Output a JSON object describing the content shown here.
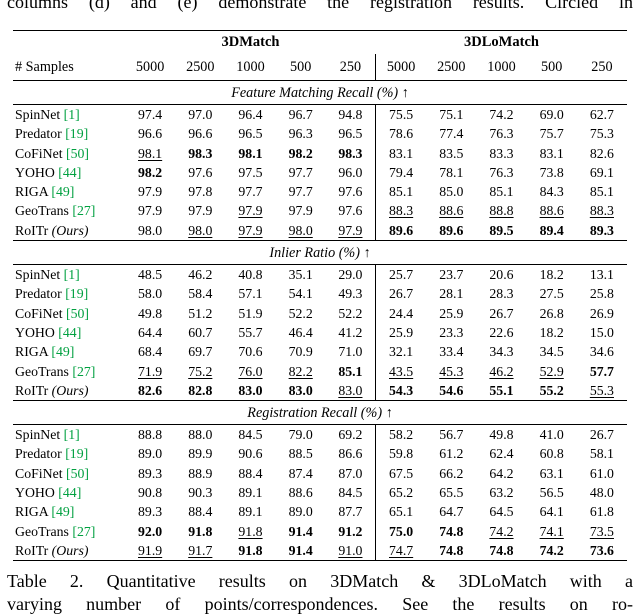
{
  "top_text": "columns (d) and (e) demonstrate the registration results. Circled in",
  "colors": {
    "citation_green": "#00a040"
  },
  "table": {
    "group_headers": [
      "3DMatch",
      "3DLoMatch"
    ],
    "samples_label": "# Samples",
    "sample_counts": [
      "5000",
      "2500",
      "1000",
      "500",
      "250",
      "5000",
      "2500",
      "1000",
      "500",
      "250"
    ],
    "sections": [
      {
        "title": "Feature Matching Recall (%) ↑",
        "rows": [
          {
            "method": "SpinNet",
            "cite": "[1]",
            "values": [
              "97.4",
              "97.0",
              "96.4",
              "96.7",
              "94.8",
              "75.5",
              "75.1",
              "74.2",
              "69.0",
              "62.7"
            ],
            "styles": [
              "n",
              "n",
              "n",
              "n",
              "n",
              "n",
              "n",
              "n",
              "n",
              "n"
            ]
          },
          {
            "method": "Predator",
            "cite": "[19]",
            "values": [
              "96.6",
              "96.6",
              "96.5",
              "96.3",
              "96.5",
              "78.6",
              "77.4",
              "76.3",
              "75.7",
              "75.3"
            ],
            "styles": [
              "n",
              "n",
              "n",
              "n",
              "n",
              "n",
              "n",
              "n",
              "n",
              "n"
            ]
          },
          {
            "method": "CoFiNet",
            "cite": "[50]",
            "values": [
              "98.1",
              "98.3",
              "98.1",
              "98.2",
              "98.3",
              "83.1",
              "83.5",
              "83.3",
              "83.1",
              "82.6"
            ],
            "styles": [
              "u",
              "b",
              "b",
              "b",
              "b",
              "n",
              "n",
              "n",
              "n",
              "n"
            ]
          },
          {
            "method": "YOHO",
            "cite": "[44]",
            "values": [
              "98.2",
              "97.6",
              "97.5",
              "97.7",
              "96.0",
              "79.4",
              "78.1",
              "76.3",
              "73.8",
              "69.1"
            ],
            "styles": [
              "b",
              "n",
              "n",
              "n",
              "n",
              "n",
              "n",
              "n",
              "n",
              "n"
            ]
          },
          {
            "method": "RIGA",
            "cite": "[49]",
            "values": [
              "97.9",
              "97.8",
              "97.7",
              "97.7",
              "97.6",
              "85.1",
              "85.0",
              "85.1",
              "84.3",
              "85.1"
            ],
            "styles": [
              "n",
              "n",
              "n",
              "n",
              "n",
              "n",
              "n",
              "n",
              "n",
              "n"
            ]
          },
          {
            "method": "GeoTrans",
            "cite": "[27]",
            "values": [
              "97.9",
              "97.9",
              "97.9",
              "97.9",
              "97.6",
              "88.3",
              "88.6",
              "88.8",
              "88.6",
              "88.3"
            ],
            "styles": [
              "n",
              "n",
              "u",
              "n",
              "n",
              "u",
              "u",
              "u",
              "u",
              "u"
            ]
          },
          {
            "method": "RoITr",
            "suffix": "(Ours)",
            "values": [
              "98.0",
              "98.0",
              "97.9",
              "98.0",
              "97.9",
              "89.6",
              "89.6",
              "89.5",
              "89.4",
              "89.3"
            ],
            "styles": [
              "n",
              "u",
              "u",
              "u",
              "u",
              "b",
              "b",
              "b",
              "b",
              "b"
            ]
          }
        ]
      },
      {
        "title": "Inlier Ratio (%) ↑",
        "rows": [
          {
            "method": "SpinNet",
            "cite": "[1]",
            "values": [
              "48.5",
              "46.2",
              "40.8",
              "35.1",
              "29.0",
              "25.7",
              "23.7",
              "20.6",
              "18.2",
              "13.1"
            ],
            "styles": [
              "n",
              "n",
              "n",
              "n",
              "n",
              "n",
              "n",
              "n",
              "n",
              "n"
            ]
          },
          {
            "method": "Predator",
            "cite": "[19]",
            "values": [
              "58.0",
              "58.4",
              "57.1",
              "54.1",
              "49.3",
              "26.7",
              "28.1",
              "28.3",
              "27.5",
              "25.8"
            ],
            "styles": [
              "n",
              "n",
              "n",
              "n",
              "n",
              "n",
              "n",
              "n",
              "n",
              "n"
            ]
          },
          {
            "method": "CoFiNet",
            "cite": "[50]",
            "values": [
              "49.8",
              "51.2",
              "51.9",
              "52.2",
              "52.2",
              "24.4",
              "25.9",
              "26.7",
              "26.8",
              "26.9"
            ],
            "styles": [
              "n",
              "n",
              "n",
              "n",
              "n",
              "n",
              "n",
              "n",
              "n",
              "n"
            ]
          },
          {
            "method": "YOHO",
            "cite": "[44]",
            "values": [
              "64.4",
              "60.7",
              "55.7",
              "46.4",
              "41.2",
              "25.9",
              "23.3",
              "22.6",
              "18.2",
              "15.0"
            ],
            "styles": [
              "n",
              "n",
              "n",
              "n",
              "n",
              "n",
              "n",
              "n",
              "n",
              "n"
            ]
          },
          {
            "method": "RIGA",
            "cite": "[49]",
            "values": [
              "68.4",
              "69.7",
              "70.6",
              "70.9",
              "71.0",
              "32.1",
              "33.4",
              "34.3",
              "34.5",
              "34.6"
            ],
            "styles": [
              "n",
              "n",
              "n",
              "n",
              "n",
              "n",
              "n",
              "n",
              "n",
              "n"
            ]
          },
          {
            "method": "GeoTrans",
            "cite": "[27]",
            "values": [
              "71.9",
              "75.2",
              "76.0",
              "82.2",
              "85.1",
              "43.5",
              "45.3",
              "46.2",
              "52.9",
              "57.7"
            ],
            "styles": [
              "u",
              "u",
              "u",
              "u",
              "b",
              "u",
              "u",
              "u",
              "u",
              "b"
            ]
          },
          {
            "method": "RoITr",
            "suffix": "(Ours)",
            "values": [
              "82.6",
              "82.8",
              "83.0",
              "83.0",
              "83.0",
              "54.3",
              "54.6",
              "55.1",
              "55.2",
              "55.3"
            ],
            "styles": [
              "b",
              "b",
              "b",
              "b",
              "u",
              "b",
              "b",
              "b",
              "b",
              "u"
            ]
          }
        ]
      },
      {
        "title": "Registration Recall (%) ↑",
        "rows": [
          {
            "method": "SpinNet",
            "cite": "[1]",
            "values": [
              "88.8",
              "88.0",
              "84.5",
              "79.0",
              "69.2",
              "58.2",
              "56.7",
              "49.8",
              "41.0",
              "26.7"
            ],
            "styles": [
              "n",
              "n",
              "n",
              "n",
              "n",
              "n",
              "n",
              "n",
              "n",
              "n"
            ]
          },
          {
            "method": "Predator",
            "cite": "[19]",
            "values": [
              "89.0",
              "89.9",
              "90.6",
              "88.5",
              "86.6",
              "59.8",
              "61.2",
              "62.4",
              "60.8",
              "58.1"
            ],
            "styles": [
              "n",
              "n",
              "n",
              "n",
              "n",
              "n",
              "n",
              "n",
              "n",
              "n"
            ]
          },
          {
            "method": "CoFiNet",
            "cite": "[50]",
            "values": [
              "89.3",
              "88.9",
              "88.4",
              "87.4",
              "87.0",
              "67.5",
              "66.2",
              "64.2",
              "63.1",
              "61.0"
            ],
            "styles": [
              "n",
              "n",
              "n",
              "n",
              "n",
              "n",
              "n",
              "n",
              "n",
              "n"
            ]
          },
          {
            "method": "YOHO",
            "cite": "[44]",
            "values": [
              "90.8",
              "90.3",
              "89.1",
              "88.6",
              "84.5",
              "65.2",
              "65.5",
              "63.2",
              "56.5",
              "48.0"
            ],
            "styles": [
              "n",
              "n",
              "n",
              "n",
              "n",
              "n",
              "n",
              "n",
              "n",
              "n"
            ]
          },
          {
            "method": "RIGA",
            "cite": "[49]",
            "values": [
              "89.3",
              "88.4",
              "89.1",
              "89.0",
              "87.7",
              "65.1",
              "64.7",
              "64.5",
              "64.1",
              "61.8"
            ],
            "styles": [
              "n",
              "n",
              "n",
              "n",
              "n",
              "n",
              "n",
              "n",
              "n",
              "n"
            ]
          },
          {
            "method": "GeoTrans",
            "cite": "[27]",
            "values": [
              "92.0",
              "91.8",
              "91.8",
              "91.4",
              "91.2",
              "75.0",
              "74.8",
              "74.2",
              "74.1",
              "73.5"
            ],
            "styles": [
              "b",
              "b",
              "u",
              "b",
              "b",
              "b",
              "b",
              "u",
              "u",
              "u"
            ]
          },
          {
            "method": "RoITr",
            "suffix": "(Ours)",
            "values": [
              "91.9",
              "91.7",
              "91.8",
              "91.4",
              "91.0",
              "74.7",
              "74.8",
              "74.8",
              "74.2",
              "73.6"
            ],
            "styles": [
              "u",
              "u",
              "b",
              "b",
              "u",
              "u",
              "b",
              "b",
              "b",
              "b"
            ]
          }
        ]
      }
    ]
  },
  "caption": {
    "line1": "Table 2.  Quantitative results on 3DMatch & 3DLoMatch with a",
    "line2": "varying number of points/correspondences. See the results on ro-"
  }
}
